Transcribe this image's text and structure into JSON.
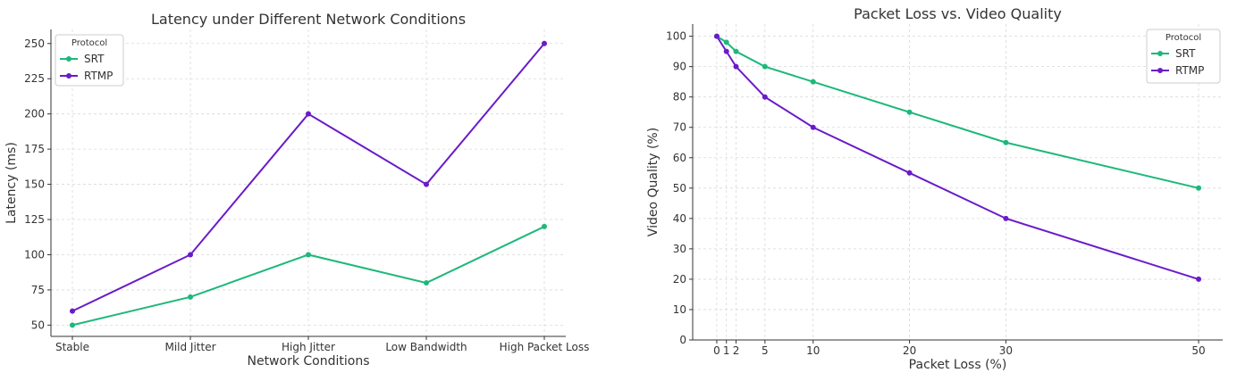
{
  "chart_data": [
    {
      "type": "line",
      "title": "Latency under Different Network Conditions",
      "xlabel": "Network Conditions",
      "ylabel": "Latency (ms)",
      "categories": [
        "Stable",
        "Mild Jitter",
        "High Jitter",
        "Low Bandwidth",
        "High Packet Loss"
      ],
      "ylim": [
        42,
        260
      ],
      "yticks": [
        50,
        75,
        100,
        125,
        150,
        175,
        200,
        225,
        250
      ],
      "grid": true,
      "legend": {
        "title": "Protocol",
        "placement": "top-left"
      },
      "series": [
        {
          "name": "SRT",
          "color": "#1db87a",
          "values": [
            50,
            70,
            100,
            80,
            120
          ]
        },
        {
          "name": "RTMP",
          "color": "#6a1bc9",
          "values": [
            60,
            100,
            200,
            150,
            250
          ]
        }
      ]
    },
    {
      "type": "line",
      "title": "Packet Loss vs. Video Quality",
      "xlabel": "Packet Loss (%)",
      "ylabel": "Video Quality (%)",
      "x": [
        0,
        1,
        2,
        5,
        10,
        20,
        30,
        50
      ],
      "xlim": [
        -2.5,
        52.5
      ],
      "ylim": [
        0,
        104
      ],
      "yticks": [
        0,
        10,
        20,
        30,
        40,
        50,
        60,
        70,
        80,
        90,
        100
      ],
      "grid": true,
      "legend": {
        "title": "Protocol",
        "placement": "top-right"
      },
      "series": [
        {
          "name": "SRT",
          "color": "#1db87a",
          "values": [
            100,
            98,
            95,
            90,
            85,
            75,
            65,
            50
          ]
        },
        {
          "name": "RTMP",
          "color": "#6a1bc9",
          "values": [
            100,
            95,
            90,
            80,
            70,
            55,
            40,
            20
          ]
        }
      ]
    }
  ]
}
